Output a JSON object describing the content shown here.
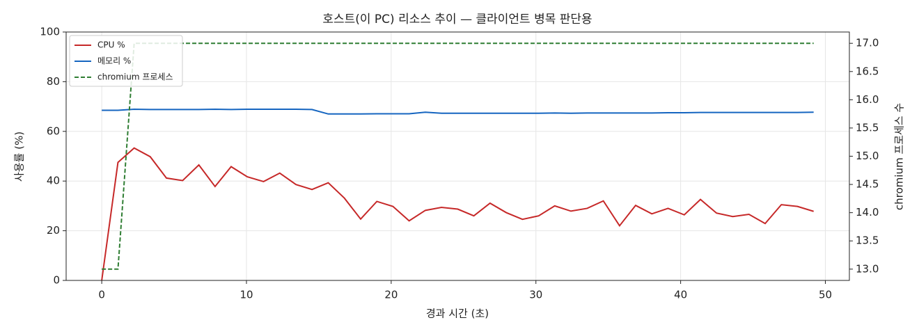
{
  "chart_data": {
    "type": "line",
    "title": "호스트(이 PC) 리소스 추이 — 클라이언트 병목 판단용",
    "xlabel": "경과 시간 (초)",
    "ylabel": "사용률 (%)",
    "y2label": "chromium 프로세스 수",
    "x": [
      0,
      1.12,
      2.24,
      3.35,
      4.47,
      5.59,
      6.71,
      7.83,
      8.94,
      10.06,
      11.18,
      12.3,
      13.42,
      14.53,
      15.65,
      16.77,
      17.89,
      19.01,
      20.12,
      21.24,
      22.36,
      23.48,
      24.6,
      25.71,
      26.83,
      27.95,
      29.07,
      30.19,
      31.3,
      32.42,
      33.54,
      34.66,
      35.78,
      36.89,
      38.01,
      39.13,
      40.25,
      41.37,
      42.48,
      43.6,
      44.72,
      45.84,
      46.96,
      48.07,
      49.19
    ],
    "series": [
      {
        "name": "CPU %",
        "color": "#c62828",
        "style": "solid",
        "axis": "y",
        "values": [
          0,
          47.5,
          53.3,
          49.8,
          41.2,
          40.2,
          46.5,
          37.8,
          45.8,
          41.7,
          39.8,
          43.2,
          38.6,
          36.6,
          39.3,
          33.1,
          24.7,
          31.8,
          29.8,
          24.0,
          28.2,
          29.4,
          28.7,
          26.0,
          31.1,
          27.3,
          24.6,
          26.0,
          30.0,
          27.9,
          29.0,
          32.0,
          22.0,
          30.2,
          26.8,
          29.0,
          26.4,
          32.6,
          27.1,
          25.7,
          26.6,
          22.9,
          30.5,
          29.8,
          27.8
        ]
      },
      {
        "name": "메모리 %",
        "color": "#1565c0",
        "style": "solid",
        "axis": "y",
        "values": [
          68.5,
          68.5,
          68.9,
          68.8,
          68.8,
          68.8,
          68.8,
          68.9,
          68.8,
          68.9,
          68.9,
          68.9,
          68.9,
          68.8,
          67.0,
          67.0,
          67.0,
          67.1,
          67.1,
          67.1,
          67.7,
          67.3,
          67.3,
          67.3,
          67.3,
          67.3,
          67.3,
          67.3,
          67.4,
          67.3,
          67.4,
          67.4,
          67.4,
          67.4,
          67.4,
          67.5,
          67.5,
          67.6,
          67.6,
          67.6,
          67.6,
          67.6,
          67.6,
          67.6,
          67.7
        ]
      },
      {
        "name": "chromium 프로세스",
        "color": "#2e7d32",
        "style": "dashed",
        "axis": "y2",
        "values": [
          13,
          13,
          17,
          17,
          17,
          17,
          17,
          17,
          17,
          17,
          17,
          17,
          17,
          17,
          17,
          17,
          17,
          17,
          17,
          17,
          17,
          17,
          17,
          17,
          17,
          17,
          17,
          17,
          17,
          17,
          17,
          17,
          17,
          17,
          17,
          17,
          17,
          17,
          17,
          17,
          17,
          17,
          17,
          17,
          17
        ]
      }
    ],
    "xlim": [
      -2.46,
      51.66
    ],
    "xticks": [
      0,
      10,
      20,
      30,
      40,
      50
    ],
    "ylim": [
      0,
      100
    ],
    "yticks": [
      0,
      20,
      40,
      60,
      80,
      100
    ],
    "y2lim": [
      12.8,
      17.2
    ],
    "y2ticks": [
      {
        "value": 13,
        "label": "13.0"
      },
      13.5,
      {
        "value": 14,
        "label": "14.0"
      },
      14.5,
      {
        "value": 15,
        "label": "15.0"
      },
      15.5,
      {
        "value": 16,
        "label": "16.0"
      },
      16.5,
      {
        "value": 17,
        "label": "17.0"
      }
    ],
    "grid": true,
    "legend": "upper left"
  }
}
